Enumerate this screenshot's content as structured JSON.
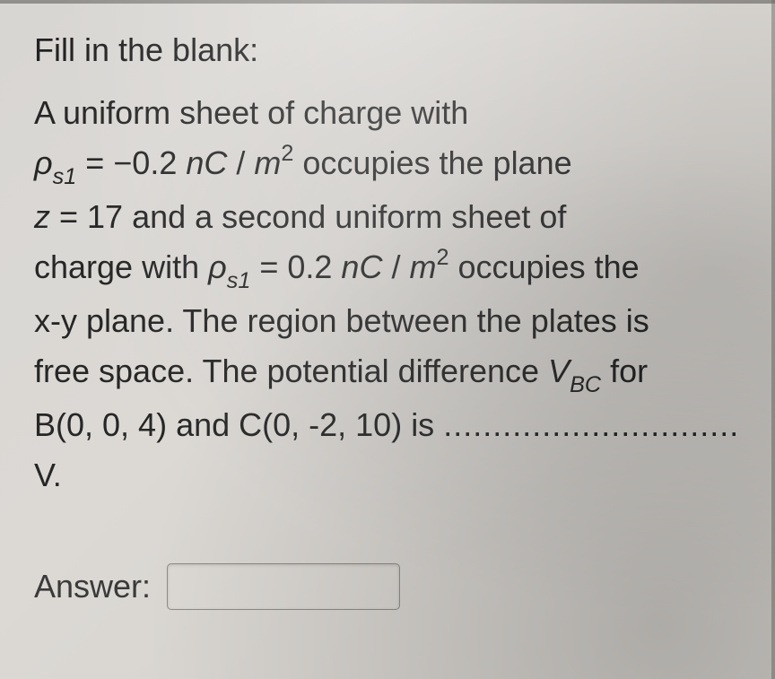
{
  "page": {
    "background_color": "#d8d6d3",
    "text_color": "#262626",
    "font_family": "Arial",
    "font_size_pt": 27
  },
  "prompt": "Fill in the blank:",
  "body": {
    "l1a": "A uniform sheet of charge with",
    "rho": "ρ",
    "sub_s1": "s1",
    "eq1a": " = ",
    "neg": "−",
    "val1": "0.2 ",
    "unit_nC": "nC",
    "slash": " / ",
    "unit_m": "m",
    "sq": "2",
    "l1b": " occupies the plane",
    "l2a": "z",
    "eq2": " = 17 and a second uniform sheet of",
    "l3a": "charge with ",
    "eq3": " = 0.2 ",
    "l3b": " occupies the",
    "l4": "x-y plane. The region between the plates is",
    "l5a": "free space. The potential difference ",
    "V": "V",
    "sub_BC": "BC",
    "l5b": " for",
    "l6a": "B(0, 0, 4) and C(0, -2, 10) is ",
    "dots": "..............................",
    "l7": "V."
  },
  "answer": {
    "label": "Answer:",
    "value": "",
    "placeholder": ""
  }
}
